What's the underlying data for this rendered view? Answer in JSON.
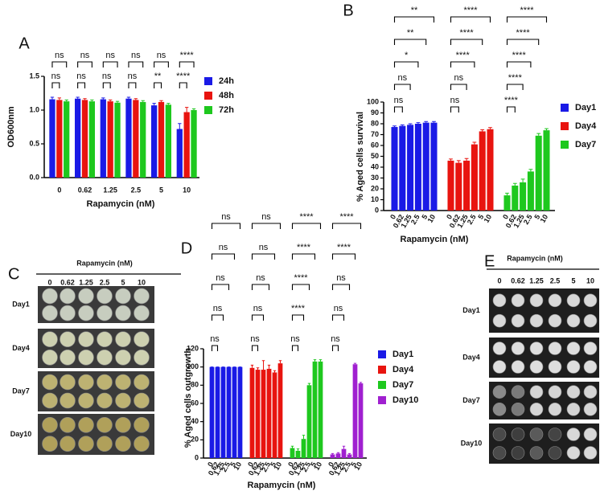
{
  "chart_data": [
    {
      "type": "bar",
      "label": "A",
      "group_by": "category",
      "x_label": "Rapamycin (nM)",
      "y_label": "OD600nm",
      "categories": [
        "0",
        "0.62",
        "1.25",
        "2.5",
        "5",
        "10"
      ],
      "series": [
        {
          "name": "24h",
          "color": "#1a1ae6",
          "values": [
            1.16,
            1.17,
            1.16,
            1.17,
            1.07,
            0.72
          ],
          "errors": [
            0.03,
            0.02,
            0.02,
            0.02,
            0.03,
            0.08
          ]
        },
        {
          "name": "48h",
          "color": "#e8140f",
          "values": [
            1.15,
            1.15,
            1.13,
            1.15,
            1.12,
            0.97
          ],
          "errors": [
            0.03,
            0.02,
            0.02,
            0.02,
            0.02,
            0.07
          ]
        },
        {
          "name": "72h",
          "color": "#1ec81e",
          "values": [
            1.13,
            1.13,
            1.11,
            1.12,
            1.08,
            1.0
          ],
          "errors": [
            0.02,
            0.02,
            0.02,
            0.02,
            0.02,
            0.02
          ]
        }
      ],
      "ylim": [
        0,
        1.5
      ],
      "yticks": [
        {
          "value": 0,
          "label": "0.0"
        },
        0.5,
        {
          "value": 1,
          "label": "1.0"
        },
        1.5
      ],
      "annotations": [
        {
          "text": "ns",
          "category": 0,
          "between": [
            0,
            1
          ]
        },
        {
          "text": "ns",
          "category": 1,
          "between": [
            0,
            1
          ]
        },
        {
          "text": "ns",
          "category": 2,
          "between": [
            0,
            1
          ]
        },
        {
          "text": "ns",
          "category": 3,
          "between": [
            0,
            1
          ]
        },
        {
          "text": "**",
          "category": 4,
          "between": [
            0,
            1
          ]
        },
        {
          "text": "****",
          "category": 5,
          "between": [
            0,
            1
          ]
        },
        {
          "text": "ns",
          "category": 0,
          "between": [
            0,
            2
          ]
        },
        {
          "text": "ns",
          "category": 1,
          "between": [
            0,
            2
          ]
        },
        {
          "text": "ns",
          "category": 2,
          "between": [
            0,
            2
          ]
        },
        {
          "text": "ns",
          "category": 3,
          "between": [
            0,
            2
          ]
        },
        {
          "text": "ns",
          "category": 4,
          "between": [
            0,
            2
          ]
        },
        {
          "text": "****",
          "category": 5,
          "between": [
            0,
            2
          ]
        }
      ]
    },
    {
      "type": "bar",
      "label": "B",
      "group_by": "series",
      "x_label": "Rapamycin (nM)",
      "y_label": "% Aged cells survival",
      "categories": [
        "0",
        "0.62",
        "1.25",
        "2.5",
        "5",
        "10"
      ],
      "series": [
        {
          "name": "Day1",
          "color": "#1a1ae6",
          "values": [
            77,
            78,
            79,
            80,
            81,
            81
          ],
          "errors": [
            1,
            1,
            1,
            1,
            1,
            1
          ]
        },
        {
          "name": "Day4",
          "color": "#e8140f",
          "values": [
            46,
            44,
            46,
            61,
            73,
            75
          ],
          "errors": [
            1.5,
            2,
            2,
            2,
            1.5,
            1.5
          ]
        },
        {
          "name": "Day7",
          "color": "#1ec81e",
          "values": [
            14,
            23,
            26,
            36,
            69,
            74
          ],
          "errors": [
            2,
            2,
            3,
            2,
            2,
            1.5
          ]
        }
      ],
      "ylim": [
        0,
        100
      ],
      "yticks": [
        0,
        10,
        20,
        30,
        40,
        50,
        60,
        70,
        80,
        90,
        100
      ],
      "annotations": [
        {
          "text": "ns",
          "series": 0,
          "between": [
            0,
            1
          ]
        },
        {
          "text": "ns",
          "series": 0,
          "between": [
            0,
            2
          ]
        },
        {
          "text": "*",
          "series": 0,
          "between": [
            0,
            3
          ]
        },
        {
          "text": "**",
          "series": 0,
          "between": [
            0,
            4
          ]
        },
        {
          "text": "**",
          "series": 0,
          "between": [
            0,
            5
          ]
        },
        {
          "text": "ns",
          "series": 1,
          "between": [
            0,
            1
          ]
        },
        {
          "text": "ns",
          "series": 1,
          "between": [
            0,
            2
          ]
        },
        {
          "text": "****",
          "series": 1,
          "between": [
            0,
            3
          ]
        },
        {
          "text": "****",
          "series": 1,
          "between": [
            0,
            4
          ]
        },
        {
          "text": "****",
          "series": 1,
          "between": [
            0,
            5
          ]
        },
        {
          "text": "****",
          "series": 2,
          "between": [
            0,
            1
          ]
        },
        {
          "text": "****",
          "series": 2,
          "between": [
            0,
            2
          ]
        },
        {
          "text": "****",
          "series": 2,
          "between": [
            0,
            3
          ]
        },
        {
          "text": "****",
          "series": 2,
          "between": [
            0,
            4
          ]
        },
        {
          "text": "****",
          "series": 2,
          "between": [
            0,
            5
          ]
        }
      ]
    },
    {
      "type": "bar",
      "label": "D",
      "group_by": "series",
      "x_label": "Rapamycin (nM)",
      "y_label": "% Aged cells outgrowth",
      "categories": [
        "0",
        "0.62",
        "1.25",
        "2.5",
        "5",
        "10"
      ],
      "series": [
        {
          "name": "Day1",
          "color": "#1a1ae6",
          "values": [
            100,
            100,
            100,
            100,
            100,
            100
          ],
          "errors": [
            0,
            0,
            0,
            0,
            0,
            0
          ]
        },
        {
          "name": "Day4",
          "color": "#e8140f",
          "values": [
            99,
            97,
            97,
            98,
            94,
            104
          ],
          "errors": [
            3,
            2,
            10,
            4,
            2,
            3
          ]
        },
        {
          "name": "Day7",
          "color": "#1ec81e",
          "values": [
            11,
            8,
            21,
            80,
            106,
            106
          ],
          "errors": [
            2,
            2,
            4,
            2,
            2,
            2
          ]
        },
        {
          "name": "Day10",
          "color": "#a020d0",
          "values": [
            4,
            5,
            10,
            4,
            103,
            82
          ],
          "errors": [
            1,
            1,
            3,
            1,
            1,
            1
          ]
        }
      ],
      "ylim": [
        0,
        120
      ],
      "yticks": [
        0,
        20,
        40,
        60,
        80,
        100,
        120
      ],
      "annotations": [
        {
          "text": "ns",
          "series": 0,
          "between": [
            0,
            1
          ]
        },
        {
          "text": "ns",
          "series": 0,
          "between": [
            0,
            2
          ]
        },
        {
          "text": "ns",
          "series": 0,
          "between": [
            0,
            3
          ]
        },
        {
          "text": "ns",
          "series": 0,
          "between": [
            0,
            4
          ]
        },
        {
          "text": "ns",
          "series": 0,
          "between": [
            0,
            5
          ]
        },
        {
          "text": "ns",
          "series": 1,
          "between": [
            0,
            1
          ]
        },
        {
          "text": "ns",
          "series": 1,
          "between": [
            0,
            2
          ]
        },
        {
          "text": "ns",
          "series": 1,
          "between": [
            0,
            3
          ]
        },
        {
          "text": "ns",
          "series": 1,
          "between": [
            0,
            4
          ]
        },
        {
          "text": "ns",
          "series": 1,
          "between": [
            0,
            5
          ]
        },
        {
          "text": "ns",
          "series": 2,
          "between": [
            0,
            1
          ]
        },
        {
          "text": "****",
          "series": 2,
          "between": [
            0,
            2
          ]
        },
        {
          "text": "****",
          "series": 2,
          "between": [
            0,
            3
          ]
        },
        {
          "text": "****",
          "series": 2,
          "between": [
            0,
            4
          ]
        },
        {
          "text": "****",
          "series": 2,
          "between": [
            0,
            5
          ]
        },
        {
          "text": "ns",
          "series": 3,
          "between": [
            0,
            1
          ]
        },
        {
          "text": "ns",
          "series": 3,
          "between": [
            0,
            2
          ]
        },
        {
          "text": "ns",
          "series": 3,
          "between": [
            0,
            3
          ]
        },
        {
          "text": "****",
          "series": 3,
          "between": [
            0,
            4
          ]
        },
        {
          "text": "****",
          "series": 3,
          "between": [
            0,
            5
          ]
        }
      ]
    }
  ],
  "plates": [
    {
      "label": "C",
      "title": "Rapamycin (nM)",
      "columns": [
        "0",
        "0.62",
        "1.25",
        "2.5",
        "5",
        "10"
      ],
      "rows": [
        "Day1",
        "Day4",
        "Day7",
        "Day10"
      ]
    },
    {
      "label": "E",
      "title": "Rapamycin (nM)",
      "columns": [
        "0",
        "0.62",
        "1.25",
        "2.5",
        "5",
        "10"
      ],
      "rows": [
        "Day1",
        "Day4",
        "Day7",
        "Day10"
      ]
    }
  ]
}
